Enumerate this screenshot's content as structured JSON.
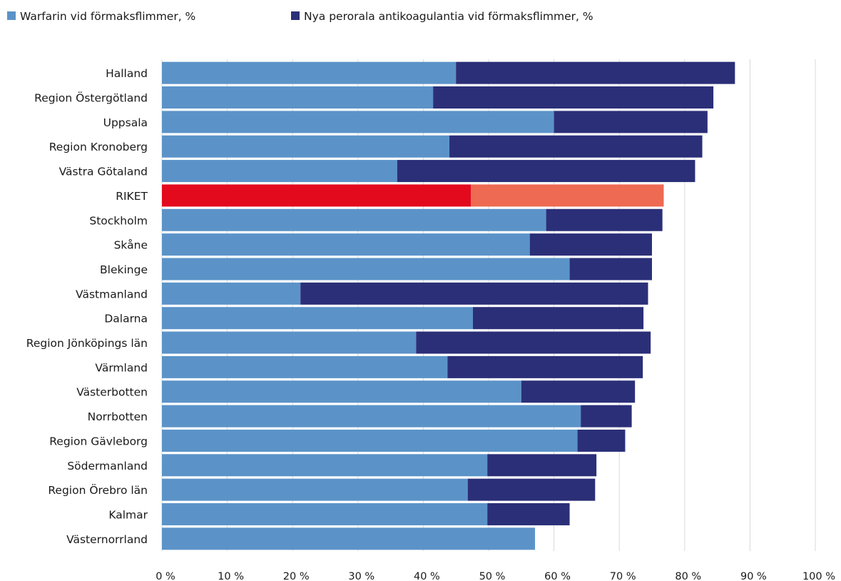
{
  "chart_data": {
    "type": "bar",
    "orientation": "horizontal",
    "stacked": true,
    "categories": [
      "Halland",
      "Region Östergötland",
      "Uppsala",
      "Region Kronoberg",
      "Västra Götaland",
      "RIKET",
      "Stockholm",
      "Skåne",
      "Blekinge",
      "Västmanland",
      "Dalarna",
      "Region Jönköpings län",
      "Värmland",
      "Västerbotten",
      "Norrbotten",
      "Region Gävleborg",
      "Södermanland",
      "Region Örebro län",
      "Kalmar",
      "Västernorrland"
    ],
    "series": [
      {
        "name": "Warfarin vid förmaksflimmer, %",
        "color": "#5b93c8",
        "values": [
          45,
          41.5,
          60,
          44,
          36,
          47.3,
          58.8,
          56.3,
          62.4,
          21.2,
          47.6,
          38.9,
          43.7,
          55,
          64.1,
          63.6,
          49.8,
          46.8,
          49.8,
          57.1
        ]
      },
      {
        "name": "Nya perorala antikoagulantia vid förmaksflimmer, %",
        "color": "#2b2f78",
        "values": [
          42.7,
          42.9,
          23.5,
          38.7,
          45.6,
          29.5,
          17.8,
          18.7,
          12.6,
          53.2,
          26.1,
          35.9,
          29.9,
          17.4,
          7.8,
          7.3,
          16.7,
          19.5,
          12.6,
          0
        ]
      }
    ],
    "highlight": {
      "category": "RIKET",
      "colors": [
        "#e30a1d",
        "#ee6a52"
      ]
    },
    "xlim": [
      0,
      100
    ],
    "x_ticks": [
      0,
      10,
      20,
      30,
      40,
      50,
      60,
      70,
      80,
      90,
      100
    ],
    "tick_suffix": " %",
    "xlabel": "",
    "ylabel": "",
    "grid": true,
    "legend_position": "top-left"
  }
}
